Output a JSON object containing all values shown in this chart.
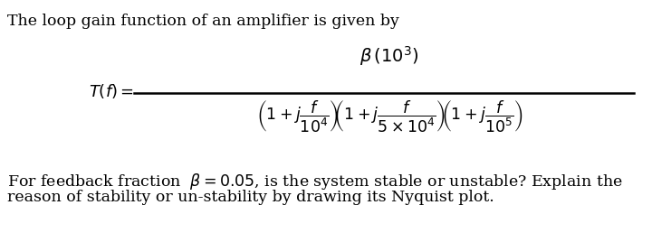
{
  "line1": "The loop gain function of an amplifier is given by",
  "line2_bottom": "For feedback fraction  $\\beta = 0.05$, is the system stable or unstable? Explain the",
  "line3_bottom": "reason of stability or un-stability by drawing its Nyquist plot.",
  "bg_color": "#ffffff",
  "text_color": "#000000",
  "fontsize_text": 12.5,
  "fontsize_formula": 13
}
